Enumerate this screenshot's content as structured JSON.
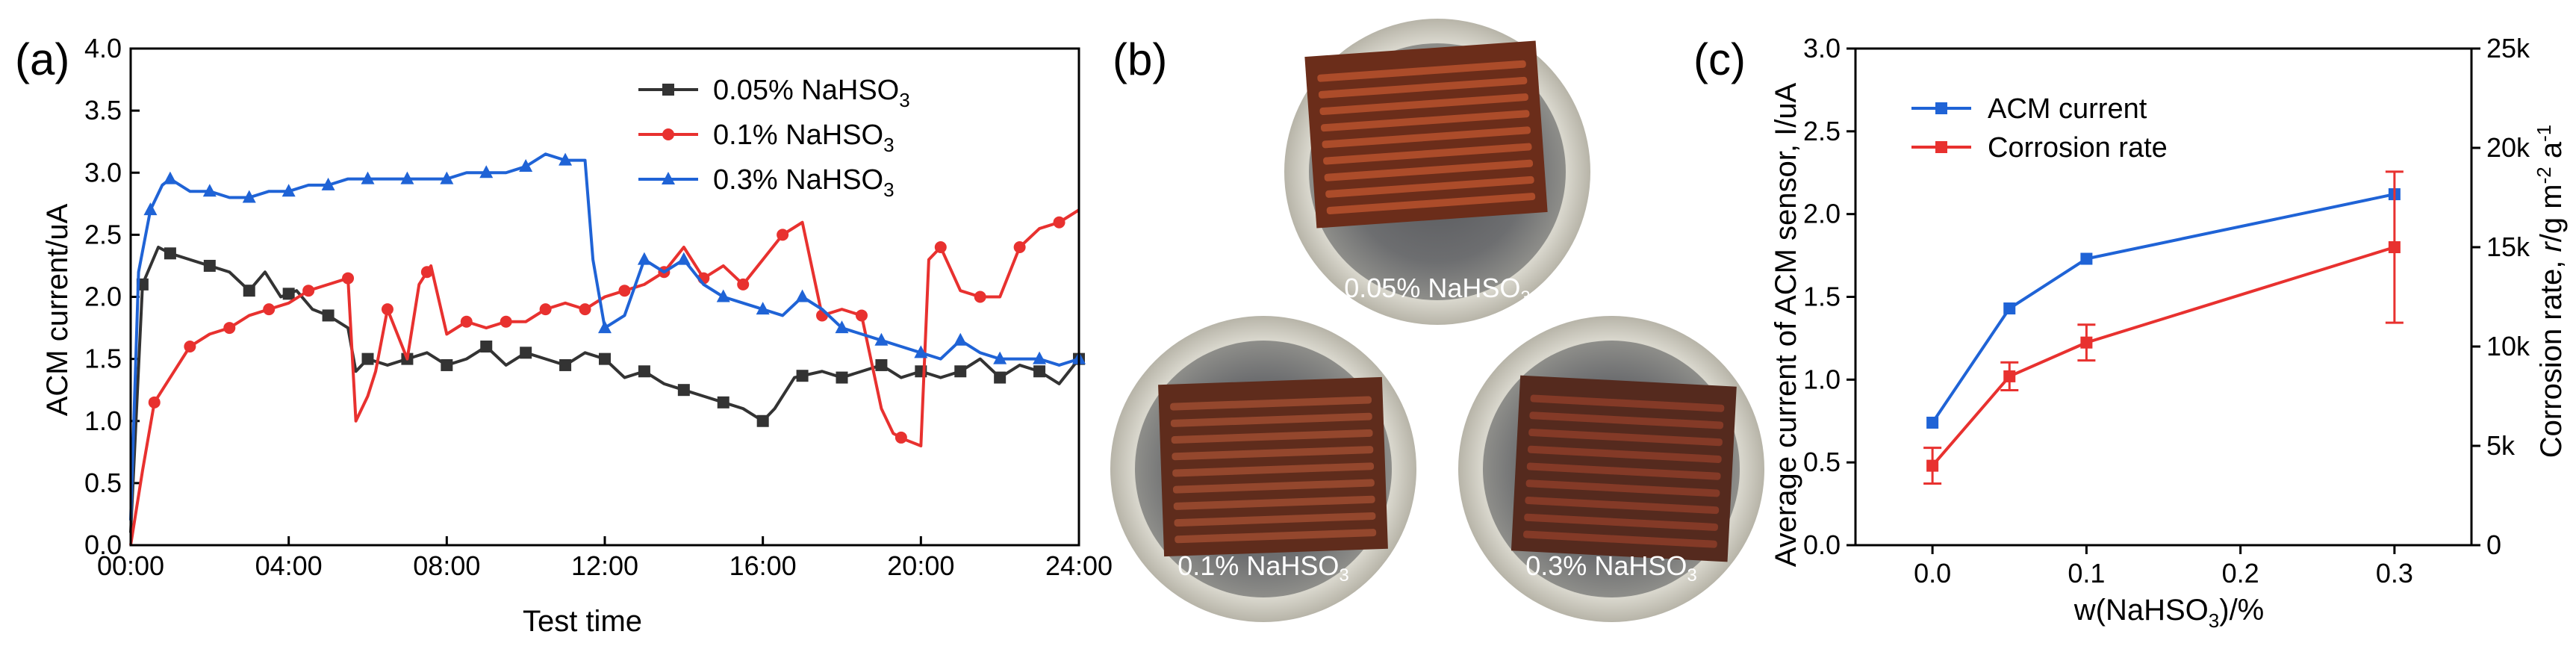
{
  "panel_labels": [
    "(a)",
    "(b)",
    "(c)"
  ],
  "chart_data": [
    {
      "type": "line",
      "panel": "(a)",
      "xlabel": "Test time",
      "ylabel": "ACM current/uA",
      "xlim": [
        0,
        24
      ],
      "ylim": [
        0,
        4.0
      ],
      "x_ticks": [
        0,
        4,
        8,
        12,
        16,
        20,
        24
      ],
      "x_tick_labels": [
        "00:00",
        "04:00",
        "08:00",
        "12:00",
        "16:00",
        "20:00",
        "24:00"
      ],
      "y_ticks": [
        0,
        0.5,
        1.0,
        1.5,
        2.0,
        2.5,
        3.0,
        3.5,
        4.0
      ],
      "y_tick_labels": [
        "0.0",
        "0.5",
        "1.0",
        "1.5",
        "2.0",
        "2.5",
        "3.0",
        "3.5",
        "4.0"
      ],
      "grid": false,
      "legend_position": "top-right",
      "series": [
        {
          "name": "0.05% NaHSO3",
          "legend_main": "0.05% NaHSO",
          "legend_sub": "3",
          "color": "#333333",
          "marker": "square",
          "x": [
            0,
            0.3,
            0.7,
            1.0,
            1.5,
            2.0,
            2.5,
            3.0,
            3.4,
            3.8,
            4.2,
            4.6,
            5.0,
            5.5,
            5.7,
            6.0,
            6.5,
            7.0,
            7.5,
            8.0,
            8.5,
            9.0,
            9.5,
            10.0,
            10.5,
            11.0,
            11.5,
            12.0,
            12.5,
            13.0,
            13.5,
            14.0,
            14.5,
            15.0,
            15.5,
            16.0,
            16.3,
            16.8,
            17.5,
            18.0,
            18.5,
            19.0,
            19.5,
            20.0,
            20.5,
            21.0,
            21.5,
            22.0,
            22.5,
            23.0,
            23.5,
            24.0
          ],
          "values": [
            0.1,
            2.1,
            2.4,
            2.35,
            2.3,
            2.25,
            2.2,
            2.05,
            2.2,
            2.0,
            2.05,
            1.9,
            1.85,
            1.75,
            1.4,
            1.5,
            1.45,
            1.5,
            1.55,
            1.45,
            1.5,
            1.6,
            1.45,
            1.55,
            1.5,
            1.45,
            1.55,
            1.5,
            1.35,
            1.4,
            1.3,
            1.25,
            1.2,
            1.15,
            1.1,
            1.0,
            1.1,
            1.35,
            1.4,
            1.35,
            1.4,
            1.45,
            1.35,
            1.4,
            1.35,
            1.4,
            1.5,
            1.35,
            1.45,
            1.4,
            1.3,
            1.5
          ],
          "marker_x": [
            0.3,
            1.0,
            2.0,
            3.0,
            4.0,
            5.0,
            6.0,
            7.0,
            8.0,
            9.0,
            10.0,
            11.0,
            12.0,
            13.0,
            14.0,
            15.0,
            16.0,
            17.0,
            18.0,
            19.0,
            20.0,
            21.0,
            22.0,
            23.0,
            24.0
          ]
        },
        {
          "name": "0.1% NaHSO3",
          "legend_main": "0.1% NaHSO",
          "legend_sub": "3",
          "color": "#e8312f",
          "marker": "circle",
          "x": [
            0,
            0.3,
            0.6,
            1.0,
            1.5,
            2.0,
            2.5,
            3.0,
            3.5,
            4.0,
            4.5,
            5.0,
            5.5,
            5.7,
            6.0,
            6.2,
            6.5,
            7.0,
            7.3,
            7.6,
            8.0,
            8.5,
            9.0,
            9.5,
            10.0,
            10.5,
            11.0,
            11.5,
            12.0,
            12.5,
            13.0,
            13.5,
            14.0,
            14.5,
            15.0,
            15.5,
            16.0,
            16.5,
            17.0,
            17.5,
            18.0,
            18.5,
            19.0,
            19.3,
            19.6,
            20.0,
            20.2,
            20.5,
            21.0,
            21.5,
            22.0,
            22.5,
            23.0,
            23.5,
            24.0
          ],
          "values": [
            0.0,
            0.6,
            1.15,
            1.35,
            1.6,
            1.7,
            1.75,
            1.85,
            1.9,
            1.95,
            2.05,
            2.1,
            2.15,
            1.0,
            1.2,
            1.4,
            1.9,
            1.5,
            2.1,
            2.25,
            1.7,
            1.8,
            1.75,
            1.8,
            1.8,
            1.9,
            1.95,
            1.9,
            2.0,
            2.05,
            2.1,
            2.2,
            2.4,
            2.15,
            2.25,
            2.1,
            2.3,
            2.5,
            2.6,
            1.85,
            1.9,
            1.85,
            1.1,
            0.9,
            0.85,
            0.8,
            2.3,
            2.4,
            2.05,
            2.0,
            2.0,
            2.4,
            2.55,
            2.6,
            2.7
          ],
          "marker_x": [
            0.6,
            1.5,
            2.5,
            3.5,
            4.5,
            5.5,
            6.5,
            7.5,
            8.5,
            9.5,
            10.5,
            11.5,
            12.5,
            13.5,
            14.5,
            15.5,
            16.5,
            17.5,
            18.5,
            19.5,
            20.5,
            21.5,
            22.5,
            23.5
          ]
        },
        {
          "name": "0.3% NaHSO3",
          "legend_main": "0.3% NaHSO",
          "legend_sub": "3",
          "color": "#1f63d6",
          "marker": "triangle",
          "x": [
            0,
            0.2,
            0.5,
            0.8,
            1.0,
            1.5,
            2.0,
            2.5,
            3.0,
            3.5,
            4.0,
            4.5,
            5.0,
            5.5,
            6.0,
            6.5,
            7.0,
            7.5,
            8.0,
            8.5,
            9.0,
            9.5,
            10.0,
            10.5,
            11.0,
            11.5,
            11.7,
            12.0,
            12.5,
            13.0,
            13.5,
            14.0,
            14.5,
            15.0,
            15.5,
            16.0,
            16.5,
            17.0,
            17.5,
            18.0,
            18.5,
            19.0,
            19.5,
            20.0,
            20.5,
            21.0,
            21.5,
            22.0,
            22.5,
            23.0,
            23.5,
            24.0
          ],
          "values": [
            0.2,
            2.2,
            2.7,
            2.9,
            2.95,
            2.85,
            2.85,
            2.8,
            2.8,
            2.85,
            2.85,
            2.9,
            2.9,
            2.95,
            2.95,
            2.95,
            2.95,
            2.95,
            2.95,
            3.0,
            3.0,
            3.0,
            3.05,
            3.15,
            3.1,
            3.1,
            2.3,
            1.75,
            1.85,
            2.3,
            2.2,
            2.3,
            2.1,
            2.0,
            1.95,
            1.9,
            1.85,
            2.0,
            1.9,
            1.75,
            1.7,
            1.65,
            1.6,
            1.55,
            1.5,
            1.65,
            1.55,
            1.5,
            1.5,
            1.5,
            1.45,
            1.5
          ],
          "marker_x": [
            0.5,
            1.0,
            2.0,
            3.0,
            4.0,
            5.0,
            6.0,
            7.0,
            8.0,
            9.0,
            10.0,
            11.0,
            12.0,
            13.0,
            14.0,
            15.0,
            16.0,
            17.0,
            18.0,
            19.0,
            20.0,
            21.0,
            22.0,
            23.0,
            24.0
          ]
        }
      ]
    },
    {
      "type": "line",
      "panel": "(c)",
      "xlabel_main": "w(NaHSO",
      "xlabel_sub": "3",
      "xlabel_end": ")/%",
      "ylabel": "Average current of ACM sensor,  I/uA",
      "y2label": "Corrosion rate, r/g m-2 a-1",
      "y2label_parts": [
        "Corrosion rate, ",
        "r",
        "/g m",
        "-2",
        " a",
        "-1"
      ],
      "xlim": [
        -0.05,
        0.35
      ],
      "ylim": [
        0,
        3.0
      ],
      "y2lim": [
        0,
        25000
      ],
      "x_ticks": [
        0.0,
        0.1,
        0.2,
        0.3
      ],
      "x_tick_labels": [
        "0.0",
        "0.1",
        "0.2",
        "0.3"
      ],
      "y_ticks": [
        0,
        0.5,
        1.0,
        1.5,
        2.0,
        2.5,
        3.0
      ],
      "y_tick_labels": [
        "0.0",
        "0.5",
        "1.0",
        "1.5",
        "2.0",
        "2.5",
        "3.0"
      ],
      "y2_ticks": [
        0,
        5000,
        10000,
        15000,
        20000,
        25000
      ],
      "y2_tick_labels": [
        "0",
        "5k",
        "10k",
        "15k",
        "20k",
        "25k"
      ],
      "grid": false,
      "legend_position": "top-left",
      "series": [
        {
          "name": "ACM current",
          "color": "#1f63d6",
          "marker": "square",
          "axis": "left",
          "x": [
            0.0,
            0.05,
            0.1,
            0.3
          ],
          "values": [
            0.74,
            1.43,
            1.73,
            2.12
          ]
        },
        {
          "name": "Corrosion rate",
          "color": "#e8312f",
          "marker": "square",
          "axis": "right",
          "x": [
            0.0,
            0.05,
            0.1,
            0.3
          ],
          "values": [
            4000,
            8500,
            10200,
            15000
          ],
          "error": [
            900,
            700,
            900,
            3800
          ]
        }
      ]
    }
  ],
  "photos": {
    "panel": "(b)",
    "items": [
      {
        "main": "0.05% NaHSO",
        "sub": "3"
      },
      {
        "main": "0.1% NaHSO",
        "sub": "3"
      },
      {
        "main": "0.3% NaHSO",
        "sub": "3"
      }
    ]
  }
}
